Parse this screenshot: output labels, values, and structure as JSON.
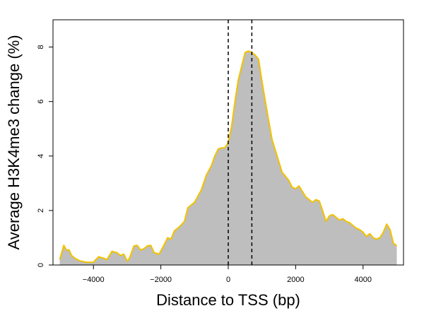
{
  "chart_data": {
    "type": "area",
    "title": "",
    "xlabel": "Distance to TSS (bp)",
    "ylabel": "Average H3K4me3 change (%)",
    "xlim": [
      -5200,
      5200
    ],
    "ylim": [
      0,
      9
    ],
    "x_ticks": [
      -4000,
      -2000,
      0,
      2000,
      4000
    ],
    "x_tick_labels": [
      "−4000",
      "−2000",
      "0",
      "2000",
      "4000"
    ],
    "y_ticks": [
      0,
      2,
      4,
      6,
      8
    ],
    "y_tick_labels": [
      "0",
      "2",
      "4",
      "6",
      "8"
    ],
    "vlines": [
      0,
      700
    ],
    "fill_color": "#bebebe",
    "line_color": "#f2c200",
    "series": [
      {
        "name": "H3K4me3 change",
        "x": [
          -5000,
          -4880,
          -4800,
          -4720,
          -4650,
          -4550,
          -4400,
          -4200,
          -4000,
          -3850,
          -3700,
          -3600,
          -3450,
          -3300,
          -3200,
          -3100,
          -3000,
          -2950,
          -2900,
          -2800,
          -2700,
          -2600,
          -2500,
          -2400,
          -2300,
          -2200,
          -2050,
          -1900,
          -1800,
          -1700,
          -1600,
          -1450,
          -1300,
          -1200,
          -1000,
          -800,
          -650,
          -500,
          -400,
          -300,
          -200,
          -100,
          0,
          100,
          200,
          300,
          400,
          500,
          600,
          700,
          800,
          900,
          1000,
          1100,
          1200,
          1300,
          1400,
          1500,
          1600,
          1700,
          1800,
          1900,
          2000,
          2100,
          2200,
          2300,
          2400,
          2500,
          2600,
          2700,
          2800,
          2900,
          3000,
          3100,
          3200,
          3300,
          3400,
          3500,
          3600,
          3700,
          3800,
          3900,
          4000,
          4100,
          4200,
          4300,
          4400,
          4500,
          4600,
          4700,
          4800,
          4900,
          5000
        ],
        "y": [
          0.2,
          0.72,
          0.55,
          0.55,
          0.35,
          0.25,
          0.15,
          0.1,
          0.1,
          0.3,
          0.25,
          0.2,
          0.5,
          0.45,
          0.35,
          0.4,
          0.15,
          0.2,
          0.35,
          0.7,
          0.72,
          0.55,
          0.6,
          0.7,
          0.72,
          0.45,
          0.4,
          0.75,
          1.0,
          0.95,
          1.25,
          1.4,
          1.6,
          2.1,
          2.3,
          2.75,
          3.3,
          3.65,
          4.0,
          4.25,
          4.3,
          4.3,
          4.5,
          5.1,
          6.0,
          6.8,
          7.3,
          7.8,
          7.85,
          7.8,
          7.7,
          7.55,
          6.75,
          6.0,
          5.3,
          4.6,
          4.2,
          3.8,
          3.4,
          3.25,
          3.1,
          2.85,
          2.8,
          2.9,
          2.7,
          2.5,
          2.4,
          2.3,
          2.4,
          2.35,
          2.0,
          1.6,
          1.8,
          1.85,
          1.75,
          1.65,
          1.7,
          1.6,
          1.55,
          1.45,
          1.35,
          1.3,
          1.2,
          1.05,
          1.15,
          1.0,
          0.95,
          1.0,
          1.2,
          1.5,
          1.3,
          0.8,
          0.7
        ]
      }
    ]
  }
}
